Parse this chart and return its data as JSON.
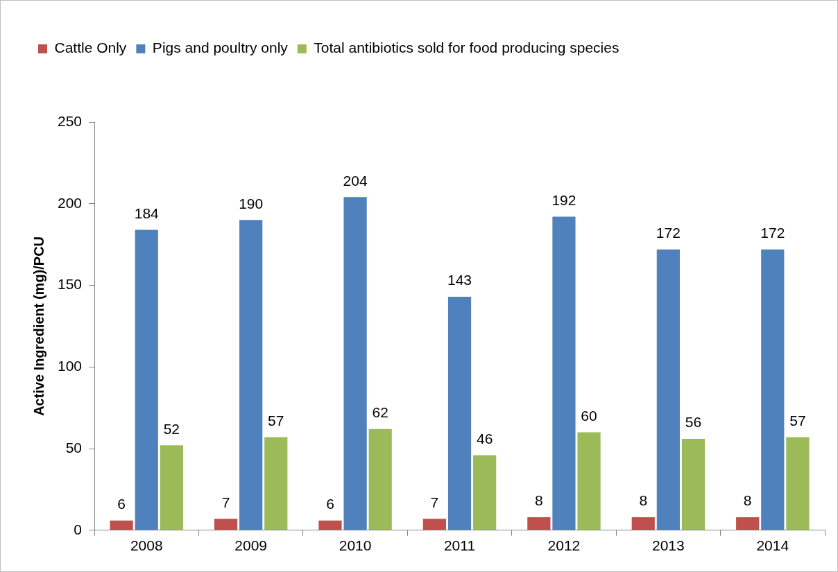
{
  "chart_data": {
    "type": "bar",
    "ylabel": "Active Ingredient (mg)/PCU",
    "categories": [
      "2008",
      "2009",
      "2010",
      "2011",
      "2012",
      "2013",
      "2014"
    ],
    "series": [
      {
        "name": "Cattle Only",
        "color": "#c0504d",
        "values": [
          6,
          7,
          6,
          7,
          8,
          8,
          8
        ]
      },
      {
        "name": "Pigs and poultry only",
        "color": "#4f81bd",
        "values": [
          184,
          190,
          204,
          143,
          192,
          172,
          172
        ]
      },
      {
        "name": "Total antibiotics sold for food producing species",
        "color": "#9bbb59",
        "values": [
          52,
          57,
          62,
          46,
          60,
          56,
          57
        ]
      }
    ],
    "ylim": [
      0,
      250
    ],
    "yticks": [
      0,
      50,
      100,
      150,
      200,
      250
    ],
    "grid": false,
    "legend": "top",
    "data_labels": true
  }
}
